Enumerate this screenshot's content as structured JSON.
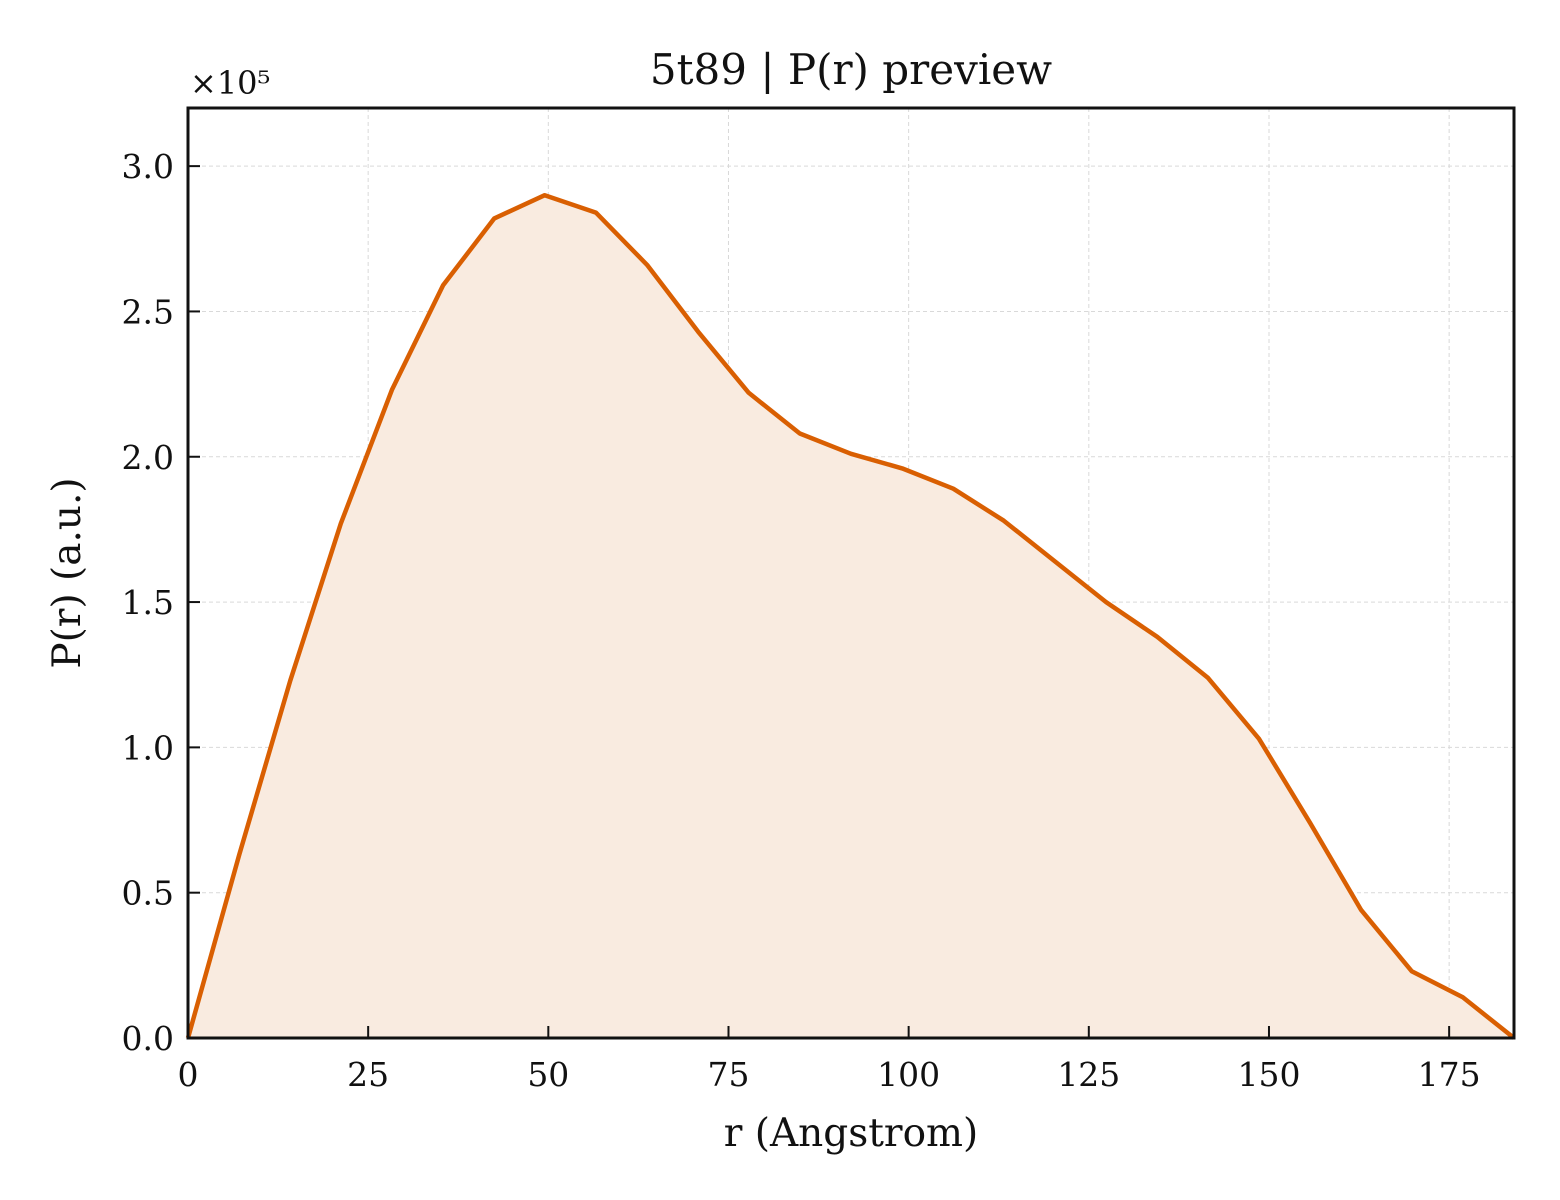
{
  "chart_data": {
    "type": "area",
    "title": "5t89 | P(r) preview",
    "xlabel": "r (Angstrom)",
    "ylabel": "P(r) (a.u.)",
    "y_scale_label": "×10⁵",
    "xlim": [
      0,
      184
    ],
    "ylim": [
      0,
      3.2
    ],
    "y_multiplier": 100000,
    "grid": true,
    "xticks": [
      0,
      25,
      50,
      75,
      100,
      125,
      150,
      175
    ],
    "xtick_labels": [
      "0",
      "25",
      "50",
      "75",
      "100",
      "125",
      "150",
      "175"
    ],
    "yticks": [
      0.0,
      0.5,
      1.0,
      1.5,
      2.0,
      2.5,
      3.0
    ],
    "ytick_labels": [
      "0.0",
      "0.5",
      "1.0",
      "1.5",
      "2.0",
      "2.5",
      "3.0"
    ],
    "series": [
      {
        "color": "#d95f02",
        "fill_color": "#f9ebe0",
        "x": [
          0,
          7.1,
          14.2,
          21.2,
          28.3,
          35.4,
          42.5,
          49.5,
          56.6,
          63.7,
          70.8,
          77.8,
          84.9,
          92.0,
          99.1,
          106.2,
          113.2,
          120.3,
          127.4,
          134.5,
          141.5,
          148.6,
          155.7,
          162.8,
          169.8,
          176.9,
          184.0
        ],
        "y": [
          0.0,
          0.63,
          1.23,
          1.77,
          2.23,
          2.59,
          2.82,
          2.9,
          2.84,
          2.66,
          2.43,
          2.22,
          2.08,
          2.01,
          1.96,
          1.89,
          1.78,
          1.64,
          1.5,
          1.38,
          1.24,
          1.03,
          0.74,
          0.44,
          0.23,
          0.14,
          0.0
        ]
      }
    ]
  }
}
